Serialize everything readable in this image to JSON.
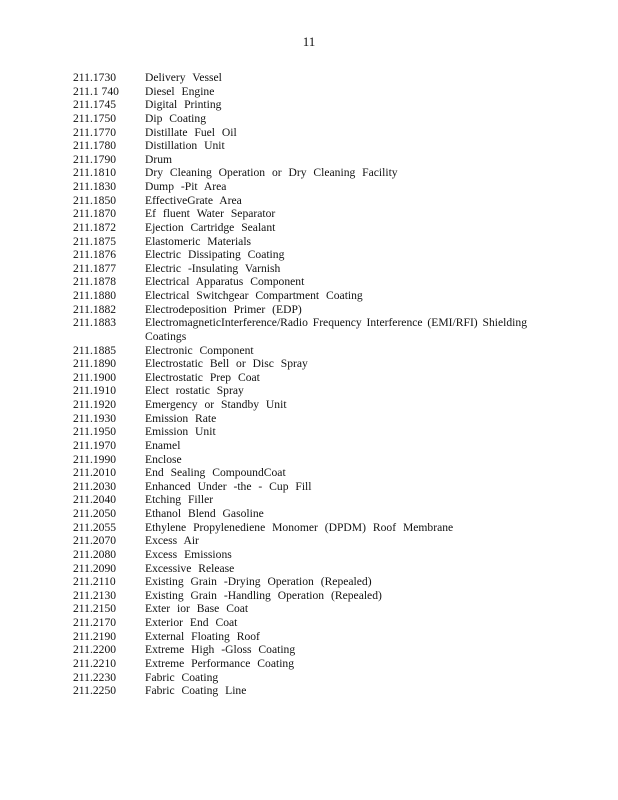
{
  "page_number": "11",
  "entries": [
    {
      "num": "211.1730",
      "term": "Delivery Vessel"
    },
    {
      "num": "211.1 740",
      "term": "Diesel Engine"
    },
    {
      "num": "211.1745",
      "term": "Digital Printing"
    },
    {
      "num": "211.1750",
      "term": "Dip Coating"
    },
    {
      "num": "211.1770",
      "term": "Distillate Fuel Oil"
    },
    {
      "num": "211.1780",
      "term": "Distillation Unit"
    },
    {
      "num": "211.1790",
      "term": "Drum"
    },
    {
      "num": "211.1810",
      "term": "Dry Cleaning Operation or Dry Cleaning Facility"
    },
    {
      "num": "211.1830",
      "term": "Dump -Pit Area"
    },
    {
      "num": "211.1850",
      "term": "EffectiveGrate Area"
    },
    {
      "num": "211.1870",
      "term": "Ef fluent Water Separator"
    },
    {
      "num": "211.1872",
      "term": "Ejection Cartridge Sealant"
    },
    {
      "num": "211.1875",
      "term": "Elastomeric Materials"
    },
    {
      "num": "211.1876",
      "term": "Electric Dissipating Coating"
    },
    {
      "num": "211.1877",
      "term": "Electric -Insulating Varnish"
    },
    {
      "num": "211.1878",
      "term": "Electrical Apparatus Component"
    },
    {
      "num": "211.1880",
      "term": "Electrical Switchgear Compartment Coating"
    },
    {
      "num": "211.1882",
      "term": "Electrodeposition Primer (EDP)"
    },
    {
      "num": "211.1883",
      "term": "ElectromagneticInterference/Radio Frequency Interference (EMI/RFI) Shielding Coatings"
    },
    {
      "num": "211.1885",
      "term": "Electronic Component"
    },
    {
      "num": "211.1890",
      "term": "Electrostatic Bell or Disc Spray"
    },
    {
      "num": "211.1900",
      "term": "Electrostatic Prep Coat"
    },
    {
      "num": "211.1910",
      "term": "Elect rostatic Spray"
    },
    {
      "num": "211.1920",
      "term": "Emergency or Standby Unit"
    },
    {
      "num": "211.1930",
      "term": "Emission Rate"
    },
    {
      "num": "211.1950",
      "term": "Emission Unit"
    },
    {
      "num": "211.1970",
      "term": "Enamel"
    },
    {
      "num": "211.1990",
      "term": "Enclose"
    },
    {
      "num": "211.2010",
      "term": "End Sealing CompoundCoat"
    },
    {
      "num": "211.2030",
      "term": "Enhanced Under -the - Cup Fill"
    },
    {
      "num": "211.2040",
      "term": "Etching Filler"
    },
    {
      "num": "211.2050",
      "term": "Ethanol Blend Gasoline"
    },
    {
      "num": "211.2055",
      "term": "Ethylene Propylenediene Monomer (DPDM) Roof Membrane"
    },
    {
      "num": "211.2070",
      "term": "Excess Air"
    },
    {
      "num": "211.2080",
      "term": "Excess Emissions"
    },
    {
      "num": "211.2090",
      "term": "Excessive Release"
    },
    {
      "num": "211.2110",
      "term": "Existing Grain -Drying Operation (Repealed)"
    },
    {
      "num": "211.2130",
      "term": "Existing Grain -Handling Operation (Repealed)"
    },
    {
      "num": "211.2150",
      "term": "Exter ior Base Coat"
    },
    {
      "num": "211.2170",
      "term": "Exterior End Coat"
    },
    {
      "num": "211.2190",
      "term": "External Floating Roof"
    },
    {
      "num": "211.2200",
      "term": "Extreme High -Gloss Coating"
    },
    {
      "num": "211.2210",
      "term": "Extreme Performance Coating"
    },
    {
      "num": "211.2230",
      "term": "Fabric Coating"
    },
    {
      "num": "211.2250",
      "term": "Fabric Coating Line"
    }
  ]
}
